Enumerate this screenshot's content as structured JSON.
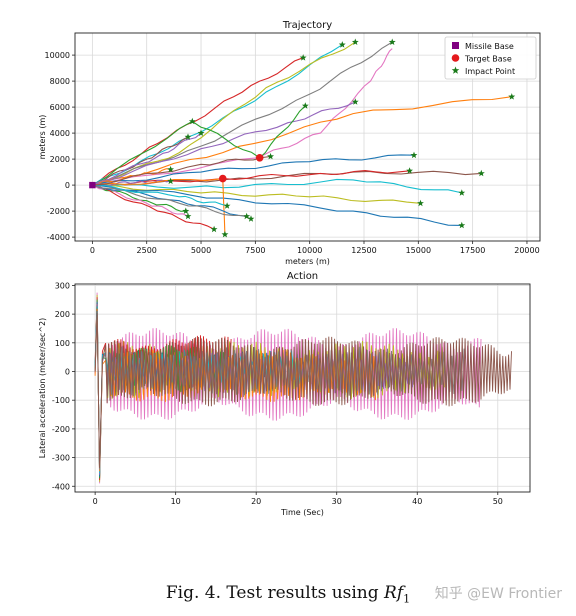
{
  "chart_data": [
    {
      "type": "line",
      "title": "Trajectory",
      "xlabel": "meters (m)",
      "ylabel": "meters (m)",
      "xlim": [
        -800,
        20600
      ],
      "ylim": [
        -4300,
        11700
      ],
      "xticks": [
        0,
        2500,
        5000,
        7500,
        10000,
        12500,
        15000,
        17500,
        20000
      ],
      "yticks": [
        -4000,
        -2000,
        0,
        2000,
        4000,
        6000,
        8000,
        10000
      ],
      "grid": true,
      "legend": {
        "position": "top-right",
        "entries": [
          "Missile Base",
          "Target Base",
          "Impact Point"
        ]
      },
      "missile_base": [
        [
          0,
          0
        ]
      ],
      "target_base": [
        [
          6000,
          500
        ],
        [
          7700,
          2100
        ]
      ],
      "impact_points": [
        [
          9700,
          9800
        ],
        [
          11500,
          10800
        ],
        [
          12100,
          11000
        ],
        [
          13800,
          11000
        ],
        [
          12100,
          6400
        ],
        [
          19300,
          6800
        ],
        [
          14800,
          2300
        ],
        [
          17900,
          900
        ],
        [
          14600,
          1100
        ],
        [
          17000,
          -600
        ],
        [
          15100,
          -1400
        ],
        [
          17000,
          -3100
        ],
        [
          4600,
          4900
        ],
        [
          4400,
          3700
        ],
        [
          3600,
          1200
        ],
        [
          3600,
          300
        ],
        [
          4300,
          -2000
        ],
        [
          4400,
          -2400
        ],
        [
          5600,
          -3400
        ],
        [
          6100,
          -3800
        ],
        [
          7100,
          -2400
        ],
        [
          7300,
          -2600
        ],
        [
          6200,
          -1600
        ],
        [
          9800,
          6100
        ],
        [
          5000,
          4000
        ],
        [
          8200,
          2200
        ]
      ],
      "series": [
        {
          "color": "#d62728",
          "points": [
            [
              0,
              0
            ],
            [
              3000,
              3200
            ],
            [
              6500,
              6800
            ],
            [
              9700,
              9800
            ]
          ]
        },
        {
          "color": "#17becf",
          "points": [
            [
              0,
              0
            ],
            [
              3500,
              2800
            ],
            [
              7500,
              6500
            ],
            [
              11500,
              10800
            ]
          ]
        },
        {
          "color": "#bcbd22",
          "points": [
            [
              0,
              0
            ],
            [
              4000,
              2500
            ],
            [
              8000,
              7500
            ],
            [
              12100,
              11000
            ]
          ]
        },
        {
          "color": "#7f7f7f",
          "points": [
            [
              0,
              0
            ],
            [
              5000,
              3000
            ],
            [
              10000,
              7000
            ],
            [
              13800,
              11000
            ]
          ]
        },
        {
          "color": "#e377c2",
          "points": [
            [
              0,
              0
            ],
            [
              7600,
              2100
            ],
            [
              10500,
              4000
            ],
            [
              12800,
              8000
            ],
            [
              13800,
              10500
            ]
          ]
        },
        {
          "color": "#ff7f0e",
          "points": [
            [
              0,
              0
            ],
            [
              6000,
              2500
            ],
            [
              12000,
              5500
            ],
            [
              19300,
              6800
            ]
          ]
        },
        {
          "color": "#9467bd",
          "points": [
            [
              0,
              0
            ],
            [
              5000,
              2800
            ],
            [
              9000,
              4800
            ],
            [
              12100,
              6400
            ]
          ]
        },
        {
          "color": "#2ca02c",
          "points": [
            [
              0,
              0
            ],
            [
              4600,
              4900
            ],
            [
              7700,
              2100
            ],
            [
              9800,
              6100
            ]
          ]
        },
        {
          "color": "#1f77b4",
          "points": [
            [
              0,
              0
            ],
            [
              5000,
              1000
            ],
            [
              10000,
              1800
            ],
            [
              14800,
              2300
            ]
          ]
        },
        {
          "color": "#8c564b",
          "points": [
            [
              0,
              0
            ],
            [
              6000,
              400
            ],
            [
              12000,
              1000
            ],
            [
              17900,
              900
            ]
          ]
        },
        {
          "color": "#d62728",
          "points": [
            [
              0,
              0
            ],
            [
              6000,
              500
            ],
            [
              10500,
              900
            ],
            [
              14600,
              1100
            ]
          ]
        },
        {
          "color": "#17becf",
          "points": [
            [
              0,
              0
            ],
            [
              6000,
              -200
            ],
            [
              12000,
              400
            ],
            [
              17000,
              -600
            ]
          ]
        },
        {
          "color": "#bcbd22",
          "points": [
            [
              0,
              0
            ],
            [
              5000,
              -600
            ],
            [
              10000,
              -900
            ],
            [
              15100,
              -1400
            ]
          ]
        },
        {
          "color": "#1f77b4",
          "points": [
            [
              0,
              0
            ],
            [
              6000,
              -1000
            ],
            [
              12000,
              -2000
            ],
            [
              17000,
              -3100
            ]
          ]
        },
        {
          "color": "#8c564b",
          "points": [
            [
              0,
              0
            ],
            [
              2500,
              2000
            ],
            [
              4400,
              3700
            ]
          ]
        },
        {
          "color": "#ff7f0e",
          "points": [
            [
              0,
              0
            ],
            [
              2000,
              700
            ],
            [
              3600,
              1200
            ]
          ]
        },
        {
          "color": "#9467bd",
          "points": [
            [
              0,
              0
            ],
            [
              2000,
              200
            ],
            [
              3600,
              300
            ]
          ]
        },
        {
          "color": "#2ca02c",
          "points": [
            [
              0,
              0
            ],
            [
              2500,
              -1200
            ],
            [
              4300,
              -2000
            ]
          ]
        },
        {
          "color": "#e377c2",
          "points": [
            [
              0,
              0
            ],
            [
              2500,
              -1400
            ],
            [
              4400,
              -2400
            ]
          ]
        },
        {
          "color": "#d62728",
          "points": [
            [
              0,
              0
            ],
            [
              3000,
              -2000
            ],
            [
              5600,
              -3400
            ]
          ]
        },
        {
          "color": "#ff7f0e",
          "points": [
            [
              0,
              0
            ],
            [
              6000,
              500
            ],
            [
              6100,
              -3800
            ]
          ]
        },
        {
          "color": "#1f77b4",
          "points": [
            [
              0,
              0
            ],
            [
              4000,
              -1200
            ],
            [
              7100,
              -2400
            ]
          ]
        },
        {
          "color": "#7f7f7f",
          "points": [
            [
              0,
              0
            ],
            [
              4000,
              -1400
            ],
            [
              7300,
              -2600
            ]
          ]
        },
        {
          "color": "#17becf",
          "points": [
            [
              0,
              0
            ],
            [
              4000,
              -900
            ],
            [
              6200,
              -1600
            ]
          ]
        },
        {
          "color": "#9467bd",
          "points": [
            [
              0,
              0
            ],
            [
              3000,
              2200
            ],
            [
              5000,
              4000
            ]
          ]
        },
        {
          "color": "#8c564b",
          "points": [
            [
              0,
              0
            ],
            [
              5000,
              1600
            ],
            [
              8200,
              2200
            ]
          ]
        }
      ]
    },
    {
      "type": "line",
      "title": "Action",
      "xlabel": "Time (Sec)",
      "ylabel": "Lateral acceleration (meter/sec^2)",
      "xlim": [
        -2.5,
        54
      ],
      "ylim": [
        -420,
        305
      ],
      "xticks": [
        0,
        10,
        20,
        30,
        40,
        50
      ],
      "yticks": [
        -400,
        -300,
        -200,
        -100,
        0,
        100,
        200,
        300
      ],
      "grid": true,
      "series": [
        {
          "color": "#e377c2",
          "t_end": 48.0,
          "amp": 150,
          "period": 0.42,
          "bias": -10
        },
        {
          "color": "#bcbd22",
          "t_end": 43.5,
          "amp": 90,
          "period": 0.55,
          "bias": 5
        },
        {
          "color": "#d62728",
          "t_end": 17.0,
          "amp": 85,
          "period": 0.38,
          "bias": 30
        },
        {
          "color": "#2ca02c",
          "t_end": 16.5,
          "amp": 70,
          "period": 0.34,
          "bias": 10
        },
        {
          "color": "#1f77b4",
          "t_end": 23.0,
          "amp": 40,
          "period": 0.5,
          "bias": 20
        },
        {
          "color": "#9467bd",
          "t_end": 40.0,
          "amp": 60,
          "period": 0.6,
          "bias": -5
        },
        {
          "color": "#17becf",
          "t_end": 26.0,
          "amp": 50,
          "period": 0.7,
          "bias": 15
        },
        {
          "color": "#ff7f0e",
          "t_end": 35.0,
          "amp": 80,
          "period": 0.45,
          "bias": -15
        },
        {
          "color": "#7f7f7f",
          "t_end": 46.0,
          "amp": 75,
          "period": 0.5,
          "bias": 0
        },
        {
          "color": "#8c564b",
          "t_end": 51.8,
          "amp": 110,
          "period": 0.36,
          "bias": 0
        }
      ],
      "initial_transient": {
        "t": [
          0.0,
          0.25,
          0.55,
          0.9,
          1.3
        ],
        "peak_high": 275,
        "peak_low": -390
      }
    }
  ],
  "caption": {
    "text": "Fig. 4.   Test results using ",
    "symbol": "Rf",
    "subscript": "1"
  },
  "watermark": "知乎 @EW Frontier"
}
